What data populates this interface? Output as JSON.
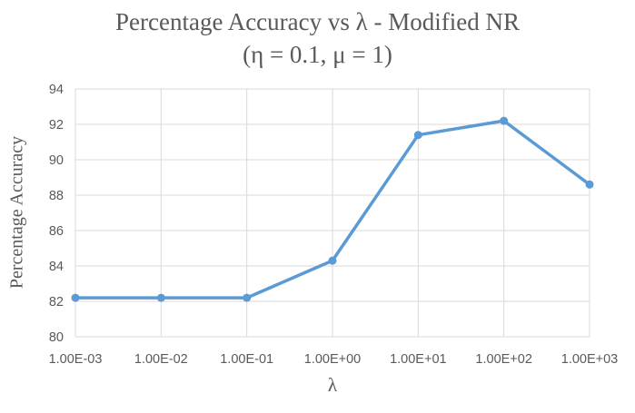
{
  "chart": {
    "title_line1": "Percentage Accuracy vs λ - Modified NR",
    "title_line2": "(η = 0.1, μ = 1)",
    "x_axis_title": "λ",
    "y_axis_title": "Percentage Accuracy"
  },
  "chart_data": {
    "type": "line",
    "title": "Percentage Accuracy vs λ - Modified NR (η = 0.1, μ = 1)",
    "categories": [
      "1.00E-03",
      "1.00E-02",
      "1.00E-01",
      "1.00E+00",
      "1.00E+01",
      "1.00E+02",
      "1.00E+03"
    ],
    "series": [
      {
        "name": "Percentage Accuracy",
        "values": [
          82.2,
          82.2,
          82.2,
          84.3,
          91.4,
          92.2,
          88.6
        ]
      }
    ],
    "xlabel": "λ",
    "ylabel": "Percentage Accuracy",
    "ylim": [
      80,
      94
    ],
    "y_tick_step": 2,
    "grid": true,
    "legend": "none",
    "colors": {
      "line": "#5B9BD5",
      "gridline": "#D9D9D9",
      "text": "#595959"
    }
  }
}
